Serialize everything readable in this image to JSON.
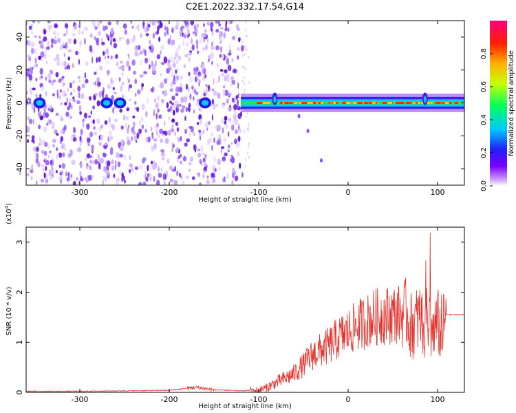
{
  "title": "C2E1.2022.332.17.54.G14",
  "colors": {
    "snr_line": "#e8302a",
    "spectrogram_noise": "#6a1fe0",
    "colormap": [
      "#ffffff",
      "#cc99ff",
      "#7a00ff",
      "#2020ff",
      "#00c8ff",
      "#00ff60",
      "#c8ff00",
      "#ffb000",
      "#ff2000",
      "#ff0080"
    ]
  },
  "chart_data": [
    {
      "type": "heatmap",
      "xlabel": "Height of straight line (km)",
      "ylabel": "Frequency (Hz)",
      "xlim": [
        -360,
        130
      ],
      "ylim": [
        -50,
        50
      ],
      "x_ticks": [
        -300,
        -200,
        -100,
        0,
        100
      ],
      "y_ticks": [
        -40,
        -20,
        0,
        20,
        40
      ],
      "colorbar": {
        "label": "Normalized spectral amplitude",
        "range": [
          0,
          1
        ],
        "ticks": [
          "0.0",
          "0.2",
          "0.4",
          "0.6",
          "0.8"
        ]
      },
      "features": {
        "noise_region_x": [
          -360,
          -118
        ],
        "signal_band_x": [
          -120,
          130
        ],
        "signal_band_center_hz": 0,
        "signal_band_halfwidth_hz": 4,
        "low_altitude_blobs_x": [
          -345,
          -270,
          -255,
          -160
        ],
        "spikes_x": [
          -82,
          86
        ]
      }
    },
    {
      "type": "line",
      "series": [
        {
          "x": [
            -360,
            -300,
            -250,
            -200,
            -170,
            -150,
            -120,
            -100,
            -90,
            -80,
            -70,
            -60,
            -50,
            -40,
            -30,
            -20,
            -10,
            0,
            10,
            20,
            30,
            40,
            50,
            60,
            65,
            70,
            80,
            85,
            90,
            95,
            100,
            105,
            110,
            120,
            130
          ],
          "y": [
            0.02,
            0.02,
            0.03,
            0.04,
            0.1,
            0.05,
            0.03,
            0.04,
            0.1,
            0.2,
            0.28,
            0.38,
            0.55,
            0.75,
            0.85,
            0.95,
            1.1,
            1.2,
            1.33,
            1.42,
            1.5,
            1.54,
            1.55,
            1.56,
            1.6,
            1.3,
            1.5,
            1.35,
            1.45,
            1.2,
            1.4,
            1.25,
            1.55,
            1.55,
            1.55
          ]
        }
      ],
      "xlabel": "Height of straight line (km)",
      "ylabel": "SNR (10 * v/v)",
      "y_multiplier": "(x10",
      "y_multiplier_exp": "4",
      "y_multiplier_close": ")",
      "xlim": [
        -360,
        130
      ],
      "ylim": [
        0,
        3.3
      ],
      "x_ticks": [
        -300,
        -200,
        -100,
        0,
        100
      ],
      "y_ticks": [
        0,
        1,
        2,
        3
      ],
      "grid": false
    }
  ]
}
